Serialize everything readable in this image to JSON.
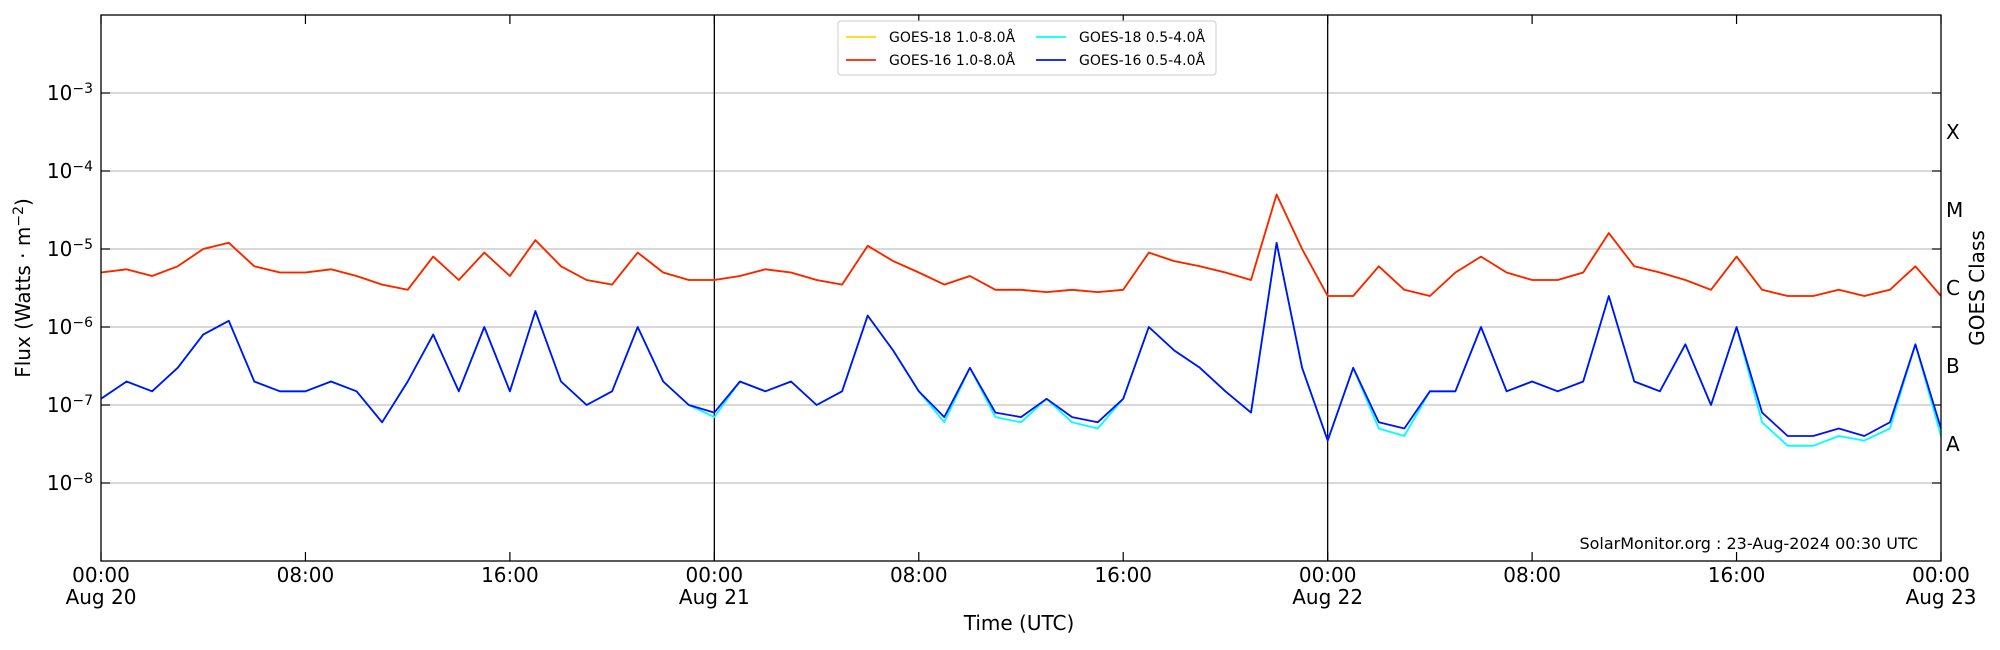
{
  "chart_data": {
    "type": "line",
    "xlabel": "Time (UTC)",
    "ylabel": "Flux (Watts · m^-2)",
    "y2label": "GOES Class",
    "annotation": "SolarMonitor.org : 23-Aug-2024 00:30 UTC",
    "log_y": true,
    "grid": true,
    "legend": "upper center",
    "xlim": [
      "Aug 20 00:00",
      "Aug 23 00:00"
    ],
    "xticks": [
      {
        "value": "Aug 20 00:00",
        "label": "00:00\nAug 20"
      },
      {
        "value": "Aug 20 08:00",
        "label": "08:00"
      },
      {
        "value": "Aug 20 16:00",
        "label": "16:00"
      },
      {
        "value": "Aug 21 00:00",
        "label": "00:00\nAug 21"
      },
      {
        "value": "Aug 21 08:00",
        "label": "08:00"
      },
      {
        "value": "Aug 21 16:00",
        "label": "16:00"
      },
      {
        "value": "Aug 22 00:00",
        "label": "00:00\nAug 22"
      },
      {
        "value": "Aug 22 08:00",
        "label": "08:00"
      },
      {
        "value": "Aug 22 16:00",
        "label": "16:00"
      },
      {
        "value": "Aug 23 00:00",
        "label": "00:00\nAug 23"
      }
    ],
    "vlines": [
      "Aug 21 00:00",
      "Aug 22 00:00"
    ],
    "ylim": [
      1e-09,
      0.01
    ],
    "yticks": [
      {
        "value": 1e-08,
        "label": "10^-8"
      },
      {
        "value": 1e-07,
        "label": "10^-7"
      },
      {
        "value": 1e-06,
        "label": "10^-6"
      },
      {
        "value": 1e-05,
        "label": "10^-5"
      },
      {
        "value": 0.0001,
        "label": "10^-4"
      },
      {
        "value": 0.001,
        "label": "10^-3"
      }
    ],
    "y2lim": [
      1e-09,
      0.01
    ],
    "y2ticks": [
      {
        "value": 3.16e-08,
        "label": "A"
      },
      {
        "value": 3.16e-07,
        "label": "B"
      },
      {
        "value": 3.16e-06,
        "label": "C"
      },
      {
        "value": 3.16e-05,
        "label": "M"
      },
      {
        "value": 0.000316,
        "label": "X"
      }
    ],
    "x": [
      "Aug 20 00:00",
      "Aug 20 01:00",
      "Aug 20 02:00",
      "Aug 20 03:00",
      "Aug 20 04:00",
      "Aug 20 05:00",
      "Aug 20 06:00",
      "Aug 20 07:00",
      "Aug 20 08:00",
      "Aug 20 09:00",
      "Aug 20 10:00",
      "Aug 20 11:00",
      "Aug 20 12:00",
      "Aug 20 13:00",
      "Aug 20 14:00",
      "Aug 20 15:00",
      "Aug 20 16:00",
      "Aug 20 17:00",
      "Aug 20 18:00",
      "Aug 20 19:00",
      "Aug 20 20:00",
      "Aug 20 21:00",
      "Aug 20 22:00",
      "Aug 20 23:00",
      "Aug 21 00:00",
      "Aug 21 01:00",
      "Aug 21 02:00",
      "Aug 21 03:00",
      "Aug 21 04:00",
      "Aug 21 05:00",
      "Aug 21 06:00",
      "Aug 21 07:00",
      "Aug 21 08:00",
      "Aug 21 09:00",
      "Aug 21 10:00",
      "Aug 21 11:00",
      "Aug 21 12:00",
      "Aug 21 13:00",
      "Aug 21 14:00",
      "Aug 21 15:00",
      "Aug 21 16:00",
      "Aug 21 17:00",
      "Aug 21 18:00",
      "Aug 21 19:00",
      "Aug 21 20:00",
      "Aug 21 21:00",
      "Aug 21 22:00",
      "Aug 21 23:00",
      "Aug 22 00:00",
      "Aug 22 01:00",
      "Aug 22 02:00",
      "Aug 22 03:00",
      "Aug 22 04:00",
      "Aug 22 05:00",
      "Aug 22 06:00",
      "Aug 22 07:00",
      "Aug 22 08:00",
      "Aug 22 09:00",
      "Aug 22 10:00",
      "Aug 22 11:00",
      "Aug 22 12:00",
      "Aug 22 13:00",
      "Aug 22 14:00",
      "Aug 22 15:00",
      "Aug 22 16:00",
      "Aug 22 17:00",
      "Aug 22 18:00",
      "Aug 22 19:00",
      "Aug 22 20:00",
      "Aug 22 21:00",
      "Aug 22 22:00",
      "Aug 22 23:00",
      "Aug 23 00:00"
    ],
    "series": [
      {
        "name": "GOES-18 1.0-8.0Å",
        "color": "#ffd700",
        "values": [
          5e-06,
          5.5e-06,
          4.5e-06,
          6e-06,
          1e-05,
          1.2e-05,
          6e-06,
          5e-06,
          5e-06,
          5.5e-06,
          4.5e-06,
          3.5e-06,
          3e-06,
          8e-06,
          4e-06,
          9e-06,
          4.5e-06,
          1.3e-05,
          6e-06,
          4e-06,
          3.5e-06,
          9e-06,
          5e-06,
          4e-06,
          4e-06,
          4.5e-06,
          5.5e-06,
          5e-06,
          4e-06,
          3.5e-06,
          1.1e-05,
          7e-06,
          5e-06,
          3.5e-06,
          4.5e-06,
          3e-06,
          3e-06,
          2.8e-06,
          3e-06,
          2.8e-06,
          3e-06,
          9e-06,
          7e-06,
          6e-06,
          5e-06,
          4e-06,
          5e-05,
          1e-05,
          2.5e-06,
          2.5e-06,
          6e-06,
          3e-06,
          2.5e-06,
          5e-06,
          8e-06,
          5e-06,
          4e-06,
          4e-06,
          5e-06,
          1.6e-05,
          6e-06,
          5e-06,
          4e-06,
          3e-06,
          8e-06,
          3e-06,
          2.5e-06,
          2.5e-06,
          3e-06,
          2.5e-06,
          3e-06,
          6e-06,
          2.5e-06
        ]
      },
      {
        "name": "GOES-16 1.0-8.0Å",
        "color": "#ff2000",
        "values": [
          5e-06,
          5.5e-06,
          4.5e-06,
          6e-06,
          1e-05,
          1.2e-05,
          6e-06,
          5e-06,
          5e-06,
          5.5e-06,
          4.5e-06,
          3.5e-06,
          3e-06,
          8e-06,
          4e-06,
          9e-06,
          4.5e-06,
          1.3e-05,
          6e-06,
          4e-06,
          3.5e-06,
          9e-06,
          5e-06,
          4e-06,
          4e-06,
          4.5e-06,
          5.5e-06,
          5e-06,
          4e-06,
          3.5e-06,
          1.1e-05,
          7e-06,
          5e-06,
          3.5e-06,
          4.5e-06,
          3e-06,
          3e-06,
          2.8e-06,
          3e-06,
          2.8e-06,
          3e-06,
          9e-06,
          7e-06,
          6e-06,
          5e-06,
          4e-06,
          5e-05,
          1e-05,
          2.5e-06,
          2.5e-06,
          6e-06,
          3e-06,
          2.5e-06,
          5e-06,
          8e-06,
          5e-06,
          4e-06,
          4e-06,
          5e-06,
          1.6e-05,
          6e-06,
          5e-06,
          4e-06,
          3e-06,
          8e-06,
          3e-06,
          2.5e-06,
          2.5e-06,
          3e-06,
          2.5e-06,
          3e-06,
          6e-06,
          2.5e-06
        ]
      },
      {
        "name": "GOES-18 0.5-4.0Å",
        "color": "#00ffff",
        "values": [
          1.2e-07,
          2e-07,
          1.5e-07,
          3e-07,
          8e-07,
          1.2e-06,
          2e-07,
          1.5e-07,
          1.5e-07,
          2e-07,
          1.5e-07,
          6e-08,
          2e-07,
          8e-07,
          1.5e-07,
          1e-06,
          1.5e-07,
          1.6e-06,
          2e-07,
          1e-07,
          1.5e-07,
          1e-06,
          2e-07,
          1e-07,
          7e-08,
          2e-07,
          1.5e-07,
          2e-07,
          1e-07,
          1.5e-07,
          1.4e-06,
          5e-07,
          1.5e-07,
          6e-08,
          3e-07,
          7e-08,
          6e-08,
          1.2e-07,
          6e-08,
          5e-08,
          1.2e-07,
          1e-06,
          5e-07,
          3e-07,
          1.5e-07,
          8e-08,
          1.2e-05,
          3e-07,
          3.5e-08,
          3e-07,
          5e-08,
          4e-08,
          1.5e-07,
          1.5e-07,
          1e-06,
          1.5e-07,
          2e-07,
          1.5e-07,
          2e-07,
          2.5e-06,
          2e-07,
          1.5e-07,
          6e-07,
          1e-07,
          1e-06,
          6e-08,
          3e-08,
          3e-08,
          4e-08,
          3.5e-08,
          5e-08,
          6e-07,
          4e-08
        ]
      },
      {
        "name": "GOES-16 0.5-4.0Å",
        "color": "#0010ff",
        "values": [
          1.2e-07,
          2e-07,
          1.5e-07,
          3e-07,
          8e-07,
          1.2e-06,
          2e-07,
          1.5e-07,
          1.5e-07,
          2e-07,
          1.5e-07,
          6e-08,
          2e-07,
          8e-07,
          1.5e-07,
          1e-06,
          1.5e-07,
          1.6e-06,
          2e-07,
          1e-07,
          1.5e-07,
          1e-06,
          2e-07,
          1e-07,
          8e-08,
          2e-07,
          1.5e-07,
          2e-07,
          1e-07,
          1.5e-07,
          1.4e-06,
          5e-07,
          1.5e-07,
          7e-08,
          3e-07,
          8e-08,
          7e-08,
          1.2e-07,
          7e-08,
          6e-08,
          1.2e-07,
          1e-06,
          5e-07,
          3e-07,
          1.5e-07,
          8e-08,
          1.2e-05,
          3e-07,
          3.5e-08,
          3e-07,
          6e-08,
          5e-08,
          1.5e-07,
          1.5e-07,
          1e-06,
          1.5e-07,
          2e-07,
          1.5e-07,
          2e-07,
          2.5e-06,
          2e-07,
          1.5e-07,
          6e-07,
          1e-07,
          1e-06,
          8e-08,
          4e-08,
          4e-08,
          5e-08,
          4e-08,
          6e-08,
          6e-07,
          5e-08
        ]
      }
    ]
  }
}
